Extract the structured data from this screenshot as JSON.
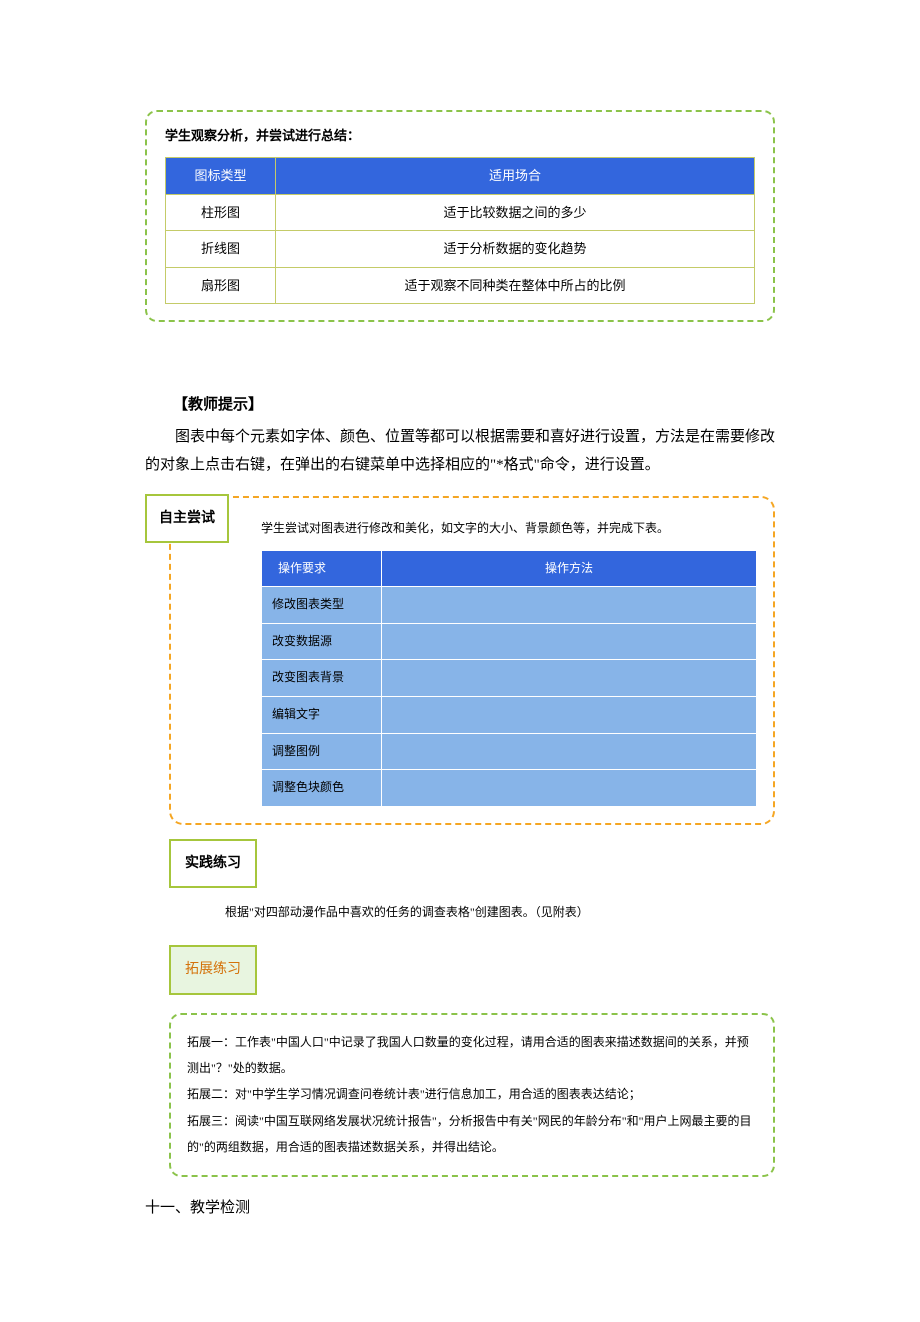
{
  "box1": {
    "title": "学生观察分析，并尝试进行总结：",
    "border_color": "#8bc34a",
    "header_bg": "#3366dd",
    "header_fg": "#ffffff",
    "cell_border": "#c4cb68",
    "cell_bg": "#ffffff",
    "columns": [
      "图标类型",
      "适用场合"
    ],
    "rows": [
      [
        "柱形图",
        "适于比较数据之间的多少"
      ],
      [
        "折线图",
        "适于分析数据的变化趋势"
      ],
      [
        "扇形图",
        "适于观察不同种类在整体中所占的比例"
      ]
    ]
  },
  "teacher_hint_label": "【教师提示】",
  "teacher_hint_para": "图表中每个元素如字体、颜色、位置等都可以根据需要和喜好进行设置，方法是在需要修改的对象上点击右键，在弹出的右键菜单中选择相应的\"*格式\"命令，进行设置。",
  "box2": {
    "tab_label": "自主尝试",
    "tab_border": "#a6c63c",
    "tab_bg": "#ffffff",
    "border_color": "#f5a623",
    "desc": "学生尝试对图表进行修改和美化，如文字的大小、背景颜色等，并完成下表。",
    "header_bg": "#3366dd",
    "header_fg": "#ffffff",
    "cell_bg": "#87b4e8",
    "columns": [
      "操作要求",
      "操作方法"
    ],
    "rows": [
      [
        "修改图表类型",
        ""
      ],
      [
        "改变数据源",
        ""
      ],
      [
        "改变图表背景",
        ""
      ],
      [
        "编辑文字",
        ""
      ],
      [
        "调整图例",
        ""
      ],
      [
        "调整色块颜色",
        ""
      ]
    ]
  },
  "practice_label": "实践练习",
  "practice_note": "根据\"对四部动漫作品中喜欢的任务的调查表格\"创建图表。（见附表）",
  "extension_label": "拓展练习",
  "box3": {
    "border_color": "#8bc34a",
    "lines": [
      "拓展一：工作表\"中国人口\"中记录了我国人口数量的变化过程，请用合适的图表来描述数据间的关系，并预测出\"？\"处的数据。",
      "拓展二：对\"中学生学习情况调查问卷统计表\"进行信息加工，用合适的图表表达结论；",
      "拓展三：阅读\"中国互联网络发展状况统计报告\"，分析报告中有关\"网民的年龄分布\"和\"用户上网最主要的目的\"的两组数据，用合适的图表描述数据关系，并得出结论。"
    ]
  },
  "final_heading": "十一、教学检测"
}
